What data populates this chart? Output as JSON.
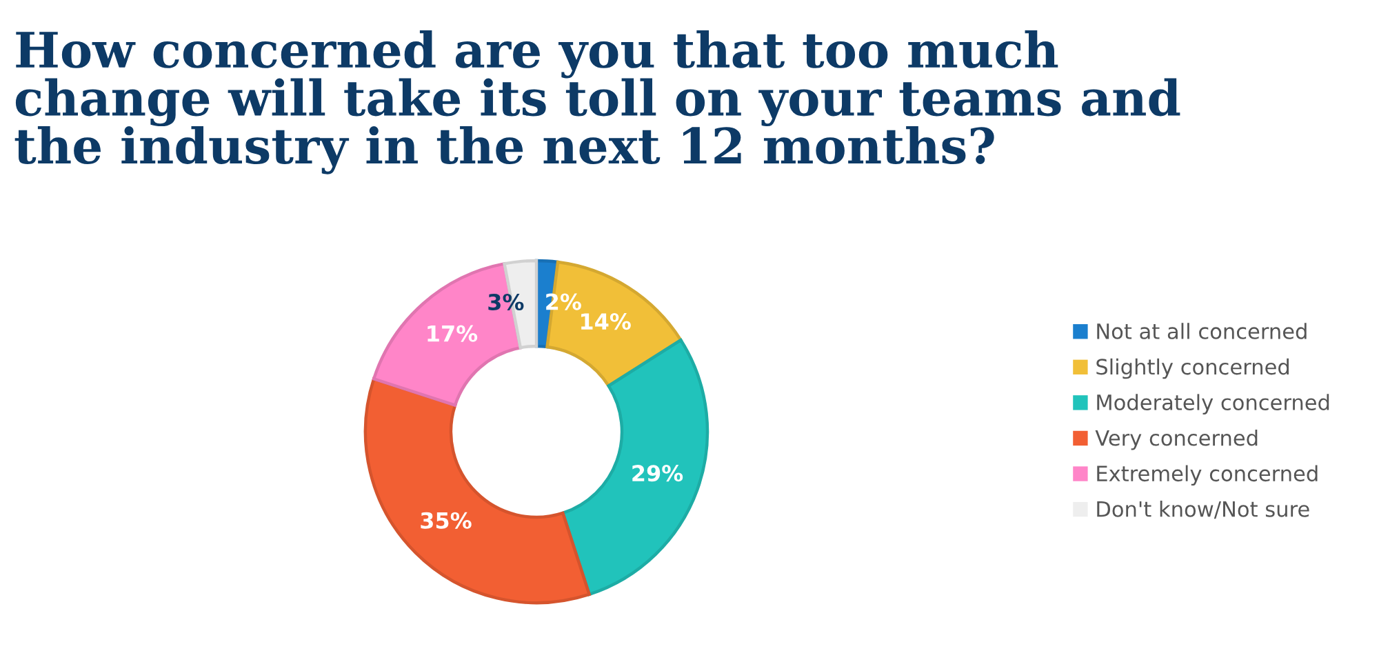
{
  "chart_data": {
    "type": "donut",
    "title": "How concerned are you that too much change will take its toll on your teams and the industry in the next 12 months?",
    "categories": [
      "Not at all concerned",
      "Slightly concerned",
      "Moderately concerned",
      "Very concerned",
      "Extremely concerned",
      "Don't know/Not sure"
    ],
    "values": [
      2,
      14,
      29,
      35,
      17,
      3
    ],
    "colors": [
      "#1b7fce",
      "#f1bf38",
      "#21c3bb",
      "#f25f33",
      "#ff85c8",
      "#eeeeee"
    ],
    "value_labels": [
      "2%",
      "14%",
      "29%",
      "35%",
      "17%",
      "3%"
    ],
    "legend": "right"
  }
}
